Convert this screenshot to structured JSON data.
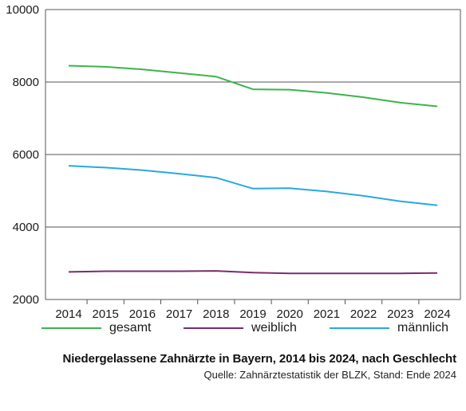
{
  "chart_data": {
    "type": "line",
    "title": "Niedergelassene Zahnärzte in Bayern, 2014 bis 2024, nach Geschlecht",
    "source": "Quelle: Zahnärztestatistik der BLZK, Stand: Ende 2024",
    "categories": [
      "2014",
      "2015",
      "2016",
      "2017",
      "2018",
      "2019",
      "2020",
      "2021",
      "2022",
      "2023",
      "2024"
    ],
    "ylim": [
      2000,
      10000
    ],
    "yticks": [
      2000,
      4000,
      6000,
      8000,
      10000
    ],
    "grid": "horizontal",
    "legend_position": "bottom",
    "series": [
      {
        "name": "gesamt",
        "color": "#3cb44b",
        "values": [
          8450,
          8420,
          8350,
          8250,
          8150,
          7800,
          7790,
          7700,
          7580,
          7430,
          7330
        ]
      },
      {
        "name": "weiblich",
        "color": "#7a2c6b",
        "values": [
          2760,
          2780,
          2780,
          2780,
          2790,
          2740,
          2720,
          2720,
          2720,
          2720,
          2730
        ]
      },
      {
        "name": "männlich",
        "color": "#29a8e0",
        "values": [
          5690,
          5640,
          5570,
          5470,
          5360,
          5060,
          5070,
          4980,
          4860,
          4710,
          4600
        ]
      }
    ]
  }
}
